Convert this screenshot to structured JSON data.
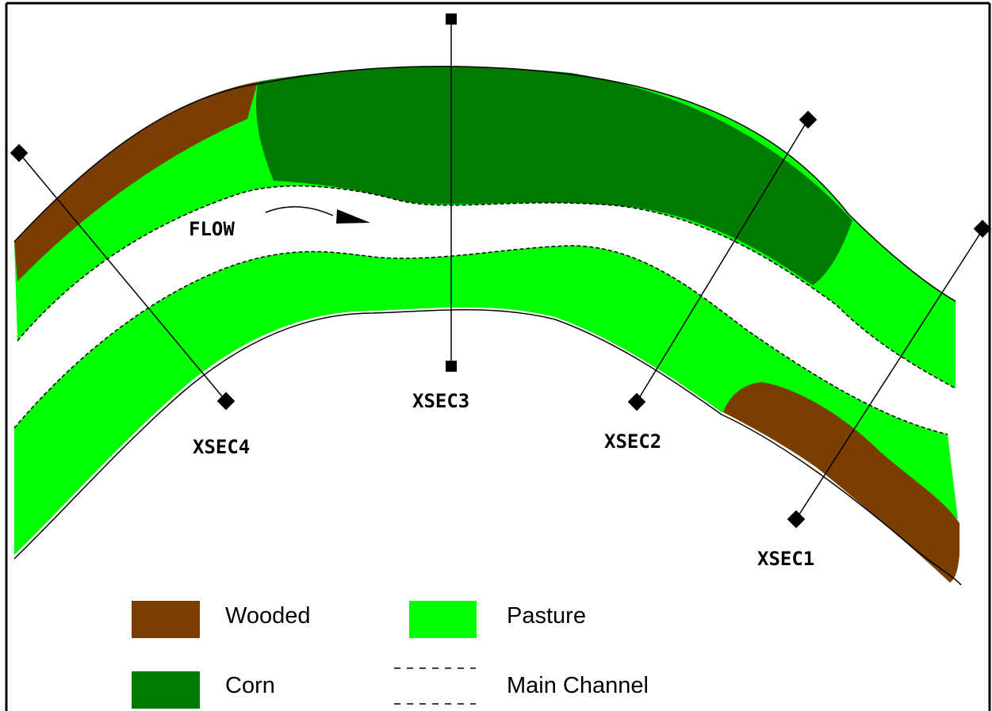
{
  "colors": {
    "wooded": "#7a3f00",
    "pasture": "#00ff00",
    "corn": "#007a00",
    "channel": "#ffffff",
    "line": "#000000"
  },
  "flow_label": "FLOW",
  "cross_sections": [
    {
      "label": "XSEC1"
    },
    {
      "label": "XSEC2"
    },
    {
      "label": "XSEC3"
    },
    {
      "label": "XSEC4"
    }
  ],
  "legend": {
    "wooded": "Wooded",
    "pasture": "Pasture",
    "corn": "Corn",
    "main_channel": "Main Channel"
  }
}
